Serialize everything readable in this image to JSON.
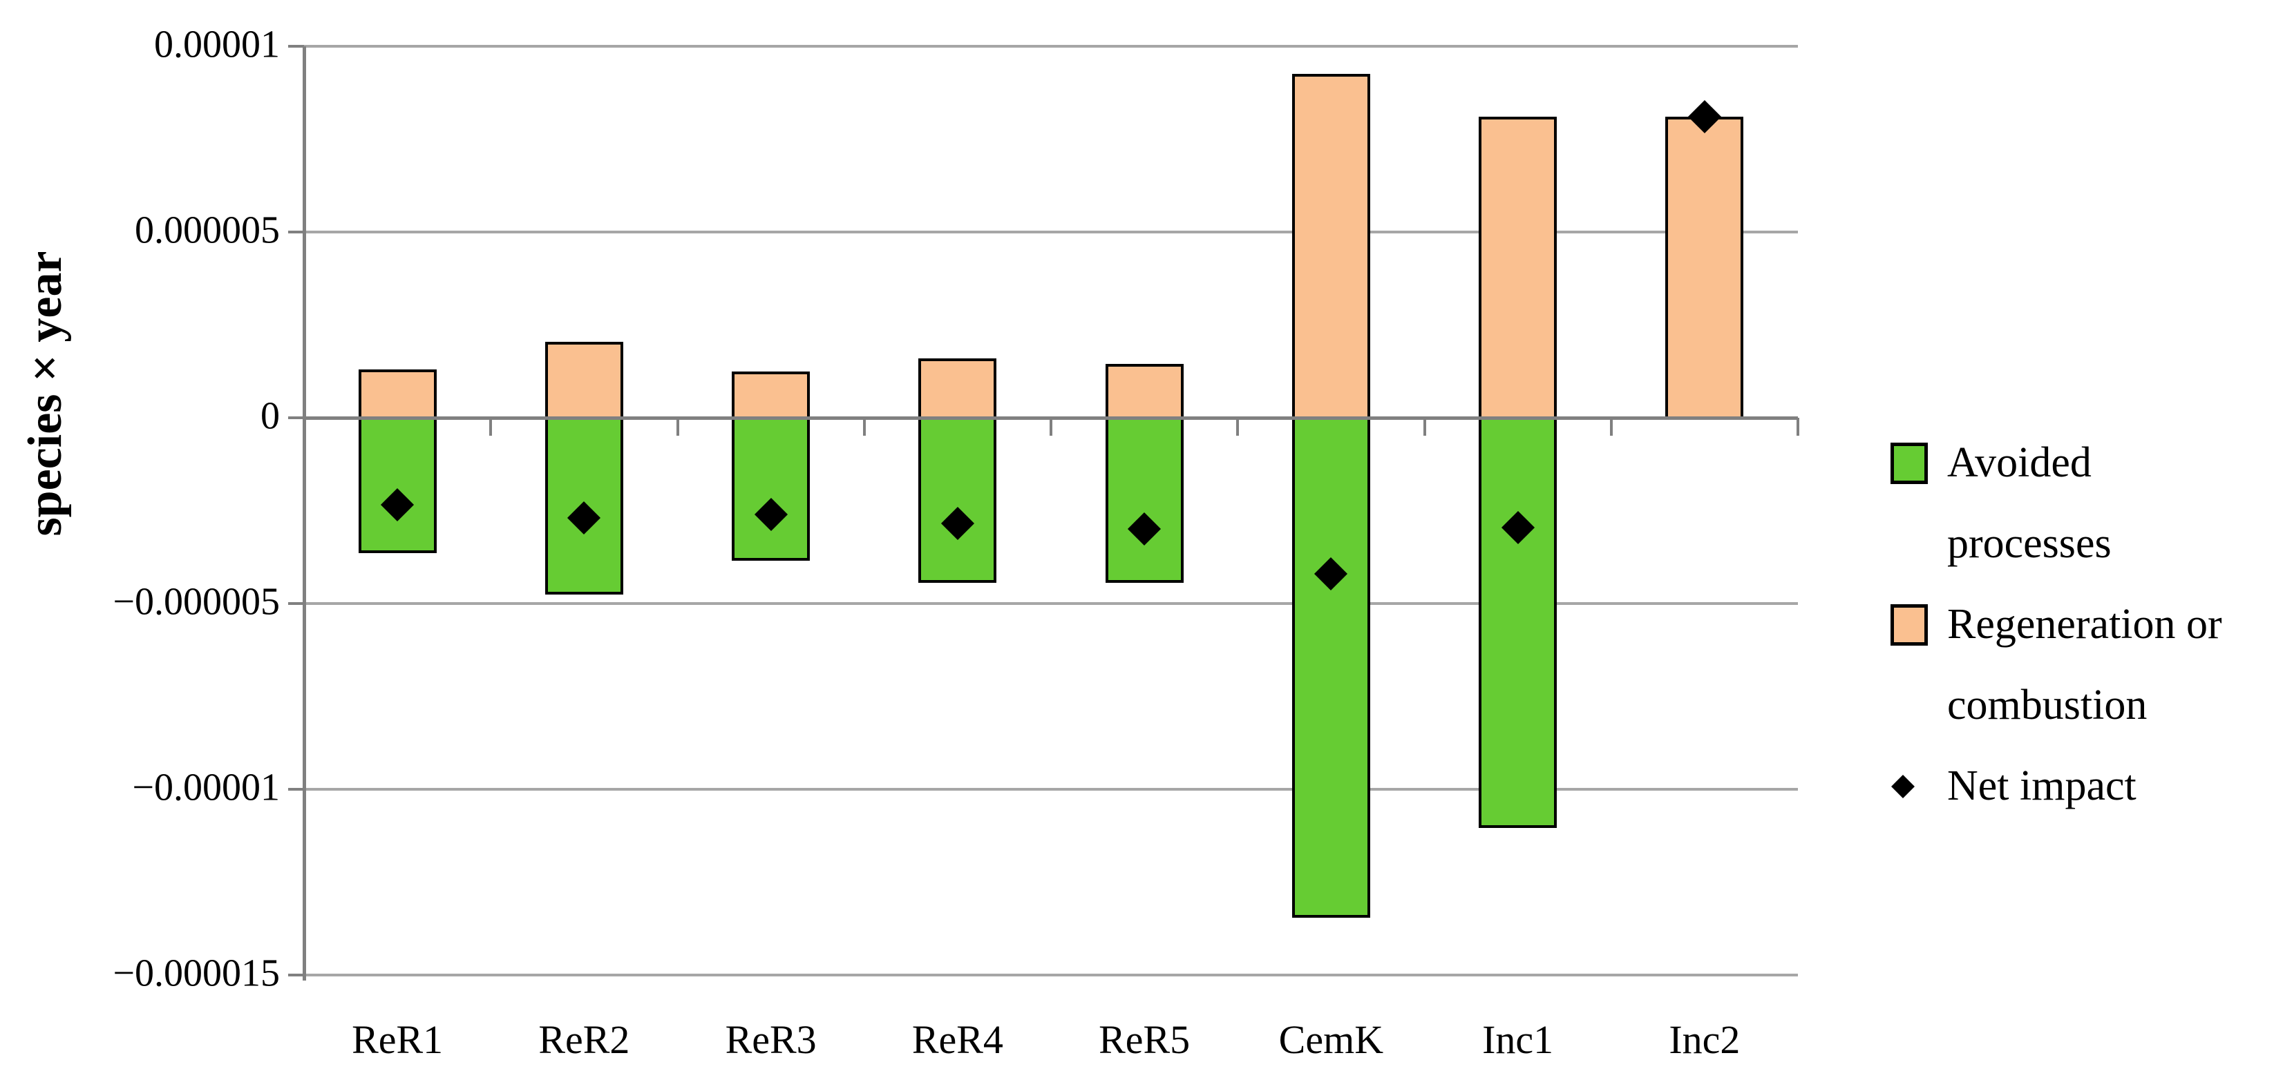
{
  "chart_data": {
    "type": "bar",
    "subtype": "stacked-with-net-markers",
    "title": "",
    "xlabel": "",
    "ylabel": "species × year",
    "categories": [
      "ReR1",
      "ReR2",
      "ReR3",
      "ReR4",
      "ReR5",
      "CemK",
      "Inc1",
      "Inc2"
    ],
    "series": [
      {
        "name": "Avoided processes",
        "type": "bar",
        "color": "#66CC33",
        "values": [
          -3.65e-06,
          -4.75e-06,
          -3.85e-06,
          -4.45e-06,
          -4.45e-06,
          -1.345e-05,
          -1.105e-05,
          0
        ]
      },
      {
        "name": "Regeneration or combustion",
        "type": "bar",
        "color": "#FAC090",
        "values": [
          1.3e-06,
          2.05e-06,
          1.25e-06,
          1.6e-06,
          1.45e-06,
          9.25e-06,
          8.1e-06,
          8.1e-06
        ]
      },
      {
        "name": "Net impact",
        "type": "scatter",
        "marker": "diamond",
        "color": "#000000",
        "values": [
          -2.35e-06,
          -2.7e-06,
          -2.6e-06,
          -2.85e-06,
          -3e-06,
          -4.2e-06,
          -2.95e-06,
          8.1e-06
        ]
      }
    ],
    "ylim": [
      -1.5e-05,
      1e-05
    ],
    "y_ticks": [
      {
        "value": 1e-05,
        "label": "0.00001"
      },
      {
        "value": 5e-06,
        "label": "0.000005"
      },
      {
        "value": 0,
        "label": "0"
      },
      {
        "value": -5e-06,
        "label": "−0.000005"
      },
      {
        "value": -1e-05,
        "label": "−0.00001"
      },
      {
        "value": -1.5e-05,
        "label": "−0.000015"
      }
    ],
    "grid": true,
    "legend_position": "right"
  },
  "legend": {
    "items": [
      {
        "name": "Avoided processes",
        "swatch": "square",
        "color": "#66CC33",
        "lines": [
          "Avoided",
          "processes"
        ]
      },
      {
        "name": "Regeneration or combustion",
        "swatch": "square",
        "color": "#FAC090",
        "lines": [
          "Regeneration or",
          "combustion"
        ]
      },
      {
        "name": "Net impact",
        "swatch": "diamond",
        "color": "#000000",
        "lines": [
          "Net impact"
        ]
      }
    ]
  },
  "colors": {
    "avoided_fill": "#66CC33",
    "regeneration_fill": "#FAC090",
    "net_marker": "#000000",
    "gridline": "#A6A6A6",
    "axis": "#808080",
    "background": "#FFFFFF"
  }
}
